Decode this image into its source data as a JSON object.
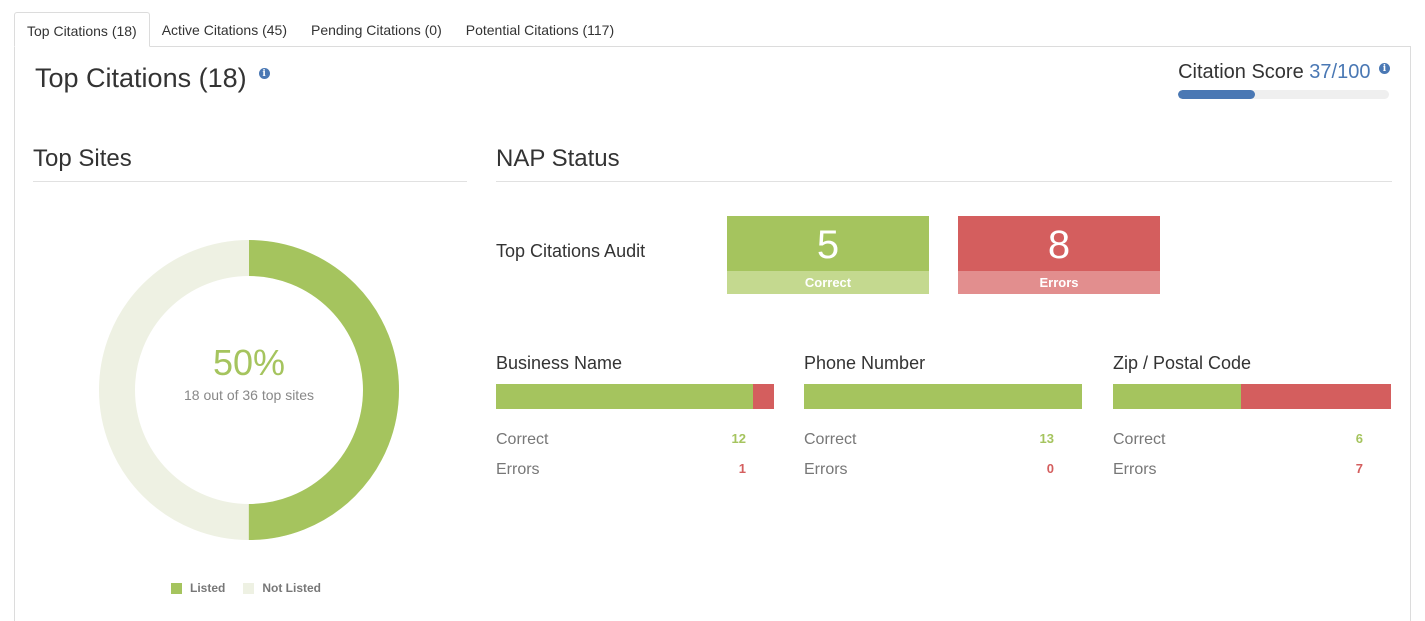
{
  "tabs": [
    {
      "label": "Top Citations (18)",
      "active": true
    },
    {
      "label": "Active Citations (45)",
      "active": false
    },
    {
      "label": "Pending Citations (0)",
      "active": false
    },
    {
      "label": "Potential Citations (117)",
      "active": false
    }
  ],
  "page_title": "Top Citations (18)",
  "citation_score": {
    "label": "Citation Score",
    "value": "37/100",
    "fraction": 0.365
  },
  "top_sites": {
    "title": "Top Sites",
    "percent_label": "50%",
    "subtitle": "18 out of 36 top sites",
    "listed": 18,
    "total": 36,
    "legend": [
      "Listed",
      "Not Listed"
    ]
  },
  "nap_status": {
    "title": "NAP Status",
    "audit_label": "Top Citations Audit",
    "correct": {
      "value": "5",
      "label": "Correct"
    },
    "errors": {
      "value": "8",
      "label": "Errors"
    },
    "fields": [
      {
        "title": "Business Name",
        "correct_label": "Correct",
        "correct": 12,
        "errors_label": "Errors",
        "errors": 1
      },
      {
        "title": "Phone Number",
        "correct_label": "Correct",
        "correct": 13,
        "errors_label": "Errors",
        "errors": 0
      },
      {
        "title": "Zip / Postal Code",
        "correct_label": "Correct",
        "correct": 6,
        "errors_label": "Errors",
        "errors": 7
      }
    ]
  },
  "colors": {
    "accent": "#4a78b4",
    "correct": "#a5c45e",
    "error": "#d45e5e",
    "not_listed": "#eef1e3"
  }
}
